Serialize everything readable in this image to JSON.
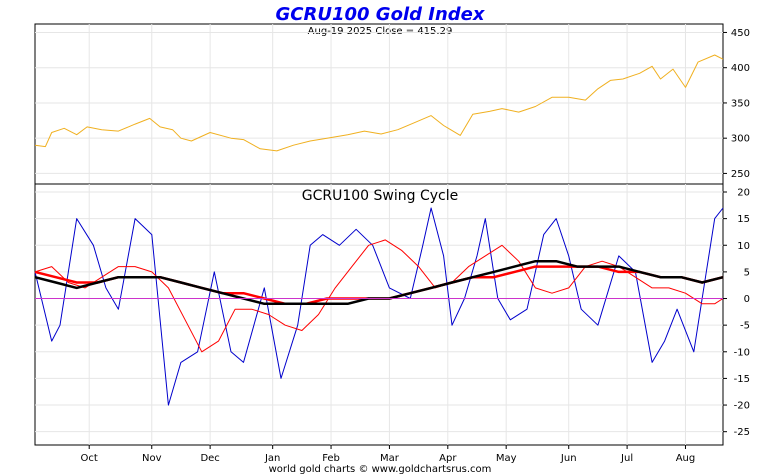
{
  "chart_data": [
    {
      "type": "line",
      "title": "GCRU100 Gold Index",
      "subtitle": "Aug-19  2025   Close = 415.29",
      "y_ticks": [
        250,
        300,
        350,
        400,
        450
      ],
      "ylim": [
        235,
        462
      ],
      "xlim": [
        0,
        330
      ],
      "series": [
        {
          "color": "#f0b020",
          "x": [
            0,
            5,
            8,
            14,
            20,
            25,
            32,
            40,
            48,
            55,
            60,
            66,
            70,
            75,
            84,
            94,
            100,
            108,
            116,
            124,
            132,
            140,
            150,
            158,
            166,
            174,
            182,
            190,
            196,
            204,
            210,
            218,
            224,
            232,
            240,
            248,
            256,
            264,
            270,
            276,
            282,
            290,
            296,
            300,
            306,
            312,
            318,
            326,
            330
          ],
          "y": [
            290,
            288,
            308,
            314,
            305,
            316,
            312,
            310,
            320,
            328,
            316,
            312,
            300,
            296,
            308,
            300,
            298,
            285,
            282,
            290,
            296,
            300,
            305,
            310,
            306,
            312,
            322,
            332,
            318,
            304,
            334,
            338,
            342,
            337,
            345,
            358,
            358,
            354,
            370,
            382,
            384,
            392,
            402,
            384,
            398,
            372,
            408,
            418,
            412
          ]
        }
      ]
    },
    {
      "type": "line",
      "title": "GCRU100 Swing Cycle",
      "y_ticks": [
        -25,
        -20,
        -15,
        -10,
        -5,
        0,
        5,
        10,
        15,
        20
      ],
      "ylim": [
        -27.5,
        21.5
      ],
      "xlim": [
        0,
        330
      ],
      "series": [
        {
          "color": "#0000cc",
          "x": [
            0,
            8,
            12,
            20,
            28,
            34,
            40,
            48,
            56,
            64,
            70,
            78,
            86,
            94,
            100,
            110,
            118,
            126,
            132,
            138,
            146,
            154,
            162,
            170,
            180,
            186,
            190,
            196,
            200,
            206,
            212,
            216,
            222,
            228,
            236,
            244,
            250,
            256,
            262,
            270,
            280,
            288,
            296,
            302,
            308,
            316,
            322,
            326,
            330
          ],
          "y": [
            5,
            -8,
            -5,
            15,
            10,
            2,
            -2,
            15,
            12,
            -20,
            -12,
            -10,
            5,
            -10,
            -12,
            2,
            -15,
            -5,
            10,
            12,
            10,
            13,
            10,
            2,
            0,
            10,
            17,
            8,
            -5,
            0,
            8,
            15,
            0,
            -4,
            -2,
            12,
            15,
            8,
            -2,
            -5,
            8,
            5,
            -12,
            -8,
            -2,
            -10,
            5,
            15,
            17
          ]
        },
        {
          "color": "#ff0000",
          "x": [
            0,
            8,
            16,
            24,
            32,
            40,
            48,
            56,
            64,
            72,
            80,
            88,
            96,
            104,
            112,
            120,
            128,
            136,
            144,
            152,
            160,
            168,
            176,
            184,
            192,
            200,
            208,
            216,
            224,
            232,
            240,
            248,
            256,
            264,
            272,
            280,
            288,
            296,
            304,
            312,
            320,
            326,
            330
          ],
          "y": [
            5,
            6,
            3,
            2,
            4,
            6,
            6,
            5,
            2,
            -4,
            -10,
            -8,
            -2,
            -2,
            -3,
            -5,
            -6,
            -3,
            2,
            6,
            10,
            11,
            9,
            6,
            2,
            3,
            6,
            8,
            10,
            7,
            2,
            1,
            2,
            6,
            7,
            6,
            4,
            2,
            2,
            1,
            -1,
            -1,
            0
          ]
        },
        {
          "color": "#ff0000",
          "x": [
            0,
            10,
            20,
            30,
            40,
            50,
            60,
            70,
            80,
            90,
            100,
            110,
            120,
            130,
            140,
            150,
            160,
            170,
            180,
            190,
            200,
            210,
            220,
            230,
            240,
            250,
            260,
            270,
            280,
            290,
            300,
            310,
            320,
            330
          ],
          "y": [
            5,
            4,
            3,
            3,
            4,
            4,
            4,
            3,
            2,
            1,
            1,
            0,
            -1,
            -1,
            0,
            0,
            0,
            0,
            1,
            2,
            3,
            4,
            4,
            5,
            6,
            6,
            6,
            6,
            5,
            5,
            4,
            4,
            3,
            4
          ]
        },
        {
          "color": "#000000",
          "x": [
            0,
            10,
            20,
            30,
            40,
            50,
            60,
            70,
            80,
            90,
            100,
            110,
            120,
            130,
            140,
            150,
            160,
            170,
            180,
            190,
            200,
            210,
            220,
            230,
            240,
            250,
            260,
            270,
            280,
            290,
            300,
            310,
            320,
            330
          ],
          "y": [
            4,
            3,
            2,
            3,
            4,
            4,
            4,
            3,
            2,
            1,
            0,
            -1,
            -1,
            -1,
            -1,
            -1,
            0,
            0,
            1,
            2,
            3,
            4,
            5,
            6,
            7,
            7,
            6,
            6,
            6,
            5,
            4,
            4,
            3,
            4
          ]
        },
        {
          "color": "#cc33cc",
          "x": [
            0,
            330
          ],
          "y": [
            0,
            0
          ]
        }
      ]
    }
  ],
  "x_axis": {
    "tick_labels": [
      "Oct",
      "Nov",
      "Dec",
      "Jan",
      "Feb",
      "Mar",
      "Apr",
      "May",
      "Jun",
      "Jul",
      "Aug"
    ],
    "tick_positions": [
      26,
      56,
      84,
      114,
      142,
      170,
      198,
      226,
      256,
      284,
      312
    ]
  },
  "footer": "world gold charts © www.goldchartsrus.com"
}
